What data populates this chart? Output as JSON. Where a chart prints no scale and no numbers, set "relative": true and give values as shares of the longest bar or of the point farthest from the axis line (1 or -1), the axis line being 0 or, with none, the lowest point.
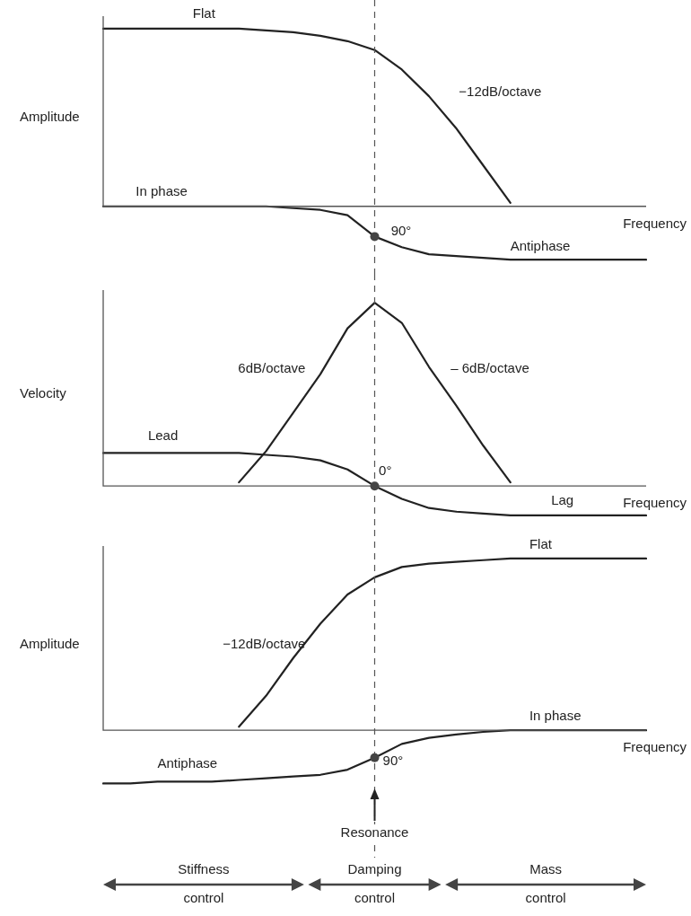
{
  "chart_data": [
    {
      "type": "line",
      "relative": true,
      "ylabel": "Amplitude",
      "xlabel": "Frequency",
      "grid": false,
      "legend": false,
      "tick_labels": false,
      "marker": "none",
      "line_style": "solid",
      "categories": [
        null,
        null,
        null,
        null,
        null,
        null,
        null,
        null,
        null,
        null,
        null,
        null,
        null,
        null,
        null,
        null,
        null,
        null,
        null,
        null,
        null
      ],
      "series": [
        {
          "color": "#222222",
          "values": [
            1,
            1,
            1,
            1,
            1,
            1,
            0.99,
            0.98,
            0.96,
            0.93,
            0.88,
            0.77,
            0.62,
            0.44,
            0.23,
            0.02,
            null,
            null,
            null,
            null,
            null
          ]
        },
        {
          "color": "#222222",
          "values": [
            0,
            0,
            0,
            0,
            0,
            0,
            0,
            -0.01,
            -0.02,
            -0.05,
            -0.17,
            -0.23,
            -0.27,
            -0.28,
            -0.29,
            -0.3,
            -0.3,
            -0.3,
            -0.3,
            -0.3,
            -0.3
          ]
        }
      ],
      "annotations": [
        "Flat",
        "−12dB/octave",
        "In phase",
        "90°",
        "Antiphase"
      ]
    },
    {
      "type": "line",
      "relative": true,
      "ylabel": "Velocity",
      "xlabel": "Frequency",
      "grid": false,
      "legend": false,
      "tick_labels": false,
      "marker": "none",
      "line_style": "solid",
      "categories": [
        null,
        null,
        null,
        null,
        null,
        null,
        null,
        null,
        null,
        null,
        null,
        null,
        null,
        null,
        null,
        null,
        null,
        null,
        null,
        null,
        null
      ],
      "series": [
        {
          "color": "#222222",
          "values": [
            null,
            null,
            null,
            null,
            null,
            0.02,
            0.19,
            0.4,
            0.61,
            0.86,
            1,
            0.89,
            0.65,
            0.44,
            0.22,
            0.02,
            null,
            null,
            null,
            null,
            null
          ]
        },
        {
          "color": "#222222",
          "values": [
            0.18,
            0.18,
            0.18,
            0.18,
            0.18,
            0.18,
            0.17,
            0.16,
            0.14,
            0.09,
            0,
            -0.07,
            -0.12,
            -0.14,
            -0.15,
            -0.16,
            -0.16,
            -0.16,
            -0.16,
            -0.16,
            -0.16
          ]
        }
      ],
      "annotations": [
        "6dB/octave",
        "– 6dB/octave",
        "Lead",
        "0°",
        "Lag"
      ]
    },
    {
      "type": "line",
      "relative": true,
      "ylabel": "Amplitude",
      "xlabel": "Frequency",
      "grid": false,
      "legend": false,
      "tick_labels": false,
      "marker": "none",
      "line_style": "solid",
      "categories": [
        null,
        null,
        null,
        null,
        null,
        null,
        null,
        null,
        null,
        null,
        null,
        null,
        null,
        null,
        null,
        null,
        null,
        null,
        null,
        null,
        null
      ],
      "series": [
        {
          "color": "#222222",
          "values": [
            null,
            null,
            null,
            null,
            null,
            0.02,
            0.2,
            0.42,
            0.62,
            0.79,
            0.89,
            0.95,
            0.97,
            0.98,
            0.99,
            1,
            1,
            1,
            1,
            1,
            1
          ]
        },
        {
          "color": "#222222",
          "values": [
            -0.31,
            -0.31,
            -0.3,
            -0.3,
            -0.3,
            -0.29,
            -0.28,
            -0.27,
            -0.26,
            -0.23,
            -0.16,
            -0.08,
            -0.045,
            -0.025,
            -0.01,
            0,
            0,
            0,
            0,
            0,
            0
          ]
        }
      ],
      "annotations": [
        "Flat",
        "−12dB/octave",
        "In phase",
        "Antiphase",
        "90°",
        "Resonance",
        "Stiffness control",
        "Damping control",
        "Mass control"
      ]
    }
  ]
}
